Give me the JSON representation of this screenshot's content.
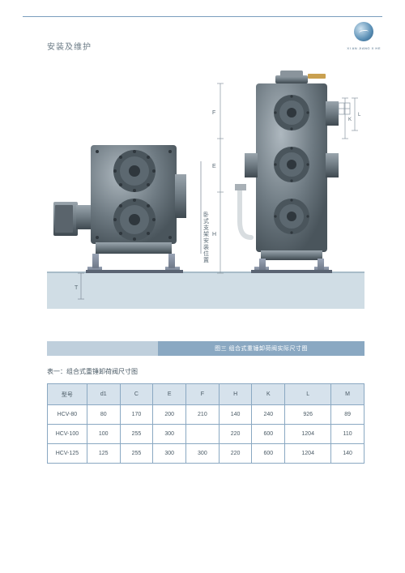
{
  "header": {
    "title": "安装及维护",
    "logo_sub": "XI AN JIANG X HE"
  },
  "figure": {
    "annotation_vertical": "卧式支架安装位置",
    "dims_left": [
      "T"
    ],
    "dims_mid": [
      "H",
      "E",
      "F"
    ],
    "dims_right": [
      "K",
      "L"
    ],
    "colors": {
      "body": "#6e7a82",
      "body_light": "#9aa5ad",
      "body_dark": "#4a555c",
      "bolt": "#3a4248",
      "accent": "#c9a050",
      "pipe": "#d8dde0",
      "base": "#8891a0",
      "shadow": "#c2d2db",
      "dim_line": "#8895a0",
      "dim_text": "#5a6a75"
    }
  },
  "banner": {
    "caption": "图三 组合式重锤卸荷阀实际尺寸图"
  },
  "table": {
    "title": "表一：组合式重锤卸荷阀尺寸图",
    "columns": [
      "型号",
      "d1",
      "C",
      "E",
      "F",
      "H",
      "K",
      "L",
      "M"
    ],
    "col_widths_pct": [
      12,
      10,
      10,
      10,
      10,
      10,
      10,
      14,
      10
    ],
    "rows": [
      [
        "HCV-80",
        "80",
        "170",
        "200",
        "210",
        "140",
        "240",
        "926",
        "89"
      ],
      [
        "HCV-100",
        "100",
        "255",
        "300",
        "",
        "220",
        "600",
        "1204",
        "110"
      ],
      [
        "HCV-125",
        "125",
        "255",
        "300",
        "300",
        "220",
        "600",
        "1204",
        "140"
      ]
    ]
  }
}
